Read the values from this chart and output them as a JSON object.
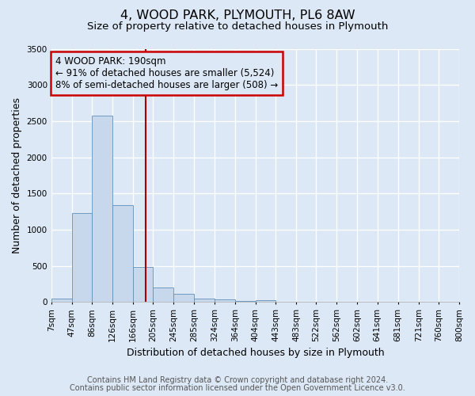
{
  "title": "4, WOOD PARK, PLYMOUTH, PL6 8AW",
  "subtitle": "Size of property relative to detached houses in Plymouth",
  "xlabel": "Distribution of detached houses by size in Plymouth",
  "ylabel": "Number of detached properties",
  "footnote1": "Contains HM Land Registry data © Crown copyright and database right 2024.",
  "footnote2": "Contains public sector information licensed under the Open Government Licence v3.0.",
  "annotation_line1": "4 WOOD PARK: 190sqm",
  "annotation_line2": "← 91% of detached houses are smaller (5,524)",
  "annotation_line3": "8% of semi-detached houses are larger (508) →",
  "bin_edges": [
    7,
    47,
    86,
    126,
    166,
    205,
    245,
    285,
    324,
    364,
    404,
    443,
    483,
    522,
    562,
    602,
    641,
    681,
    721,
    760,
    800
  ],
  "bar_heights": [
    50,
    1230,
    2580,
    1340,
    490,
    200,
    110,
    50,
    40,
    20,
    30,
    5,
    5,
    0,
    0,
    0,
    0,
    0,
    0,
    0
  ],
  "bar_color": "#c8d8ec",
  "bar_edge_color": "#6090b8",
  "vline_x": 190,
  "vline_color": "#aa0000",
  "annotation_box_color": "#cc0000",
  "ylim": [
    0,
    3500
  ],
  "xlim": [
    7,
    800
  ],
  "bg_color": "#dce8f5",
  "plot_bg_color": "#dce8f5",
  "grid_color": "#ffffff",
  "title_fontsize": 11.5,
  "subtitle_fontsize": 9.5,
  "axis_label_fontsize": 9,
  "tick_fontsize": 7.5,
  "annotation_fontsize": 8.5,
  "footnote_fontsize": 7
}
